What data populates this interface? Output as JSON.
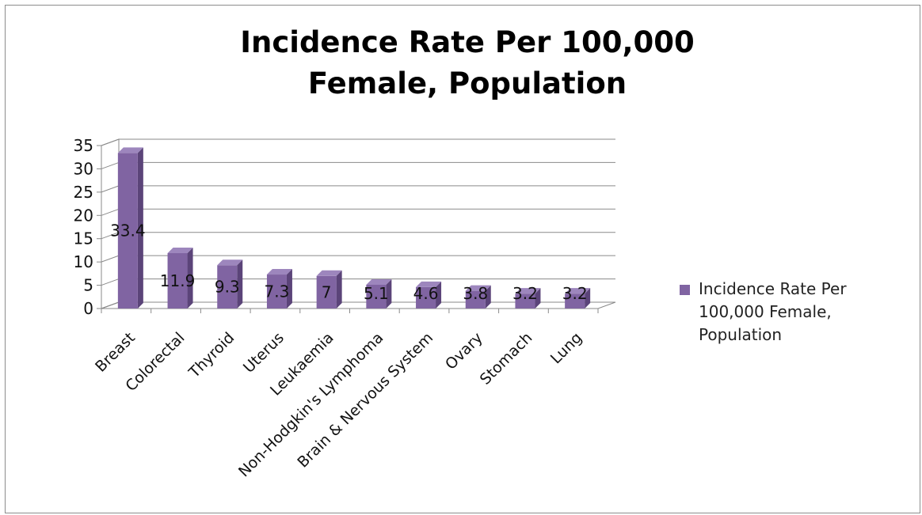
{
  "chart_data": {
    "type": "bar",
    "title": "Incidence Rate Per 100,000\nFemale, Population",
    "categories": [
      "Breast",
      "Colorectal",
      "Thyroid",
      "Uterus",
      "Leukaemia",
      "Non-Hodgkin's Lymphoma",
      "Brain & Nervous System",
      "Ovary",
      "Stomach",
      "Lung"
    ],
    "series": [
      {
        "name": "Incidence Rate Per 100,000 Female, Population",
        "values": [
          33.4,
          11.9,
          9.3,
          7.3,
          7,
          5.1,
          4.6,
          3.8,
          3.2,
          3.2
        ],
        "labels": [
          "33.4",
          "11.9",
          "9.3",
          "7.3",
          "7",
          "5.1",
          "4.6",
          "3.8",
          "3.2",
          "3.2"
        ]
      }
    ],
    "yticks": [
      0,
      5,
      10,
      15,
      20,
      25,
      30,
      35
    ],
    "ylim": [
      0,
      35
    ],
    "grid": true,
    "legend": "right",
    "bar_color": "#8064a2"
  }
}
